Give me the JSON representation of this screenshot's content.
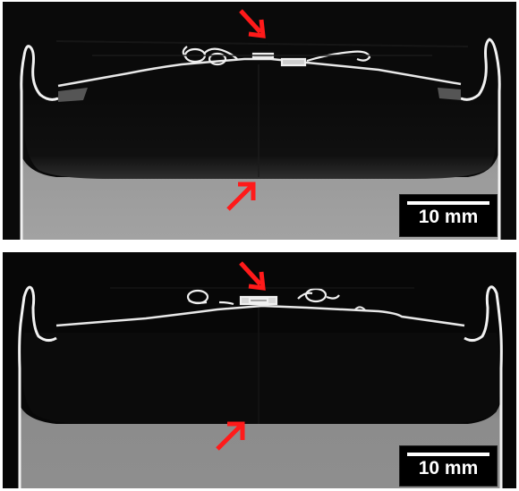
{
  "panels": [
    {
      "scale_label": "10 mm"
    },
    {
      "scale_label": "10 mm"
    }
  ],
  "colors": {
    "background": "#ffffff",
    "image_dark": "#050505",
    "material_gray_top": "#9a9a9a",
    "material_gray_bottom": "#8c8c8c",
    "edge_white": "#f2f2f2",
    "arrow": "#ff1a1a"
  },
  "icons": [
    "arrow-icon"
  ]
}
